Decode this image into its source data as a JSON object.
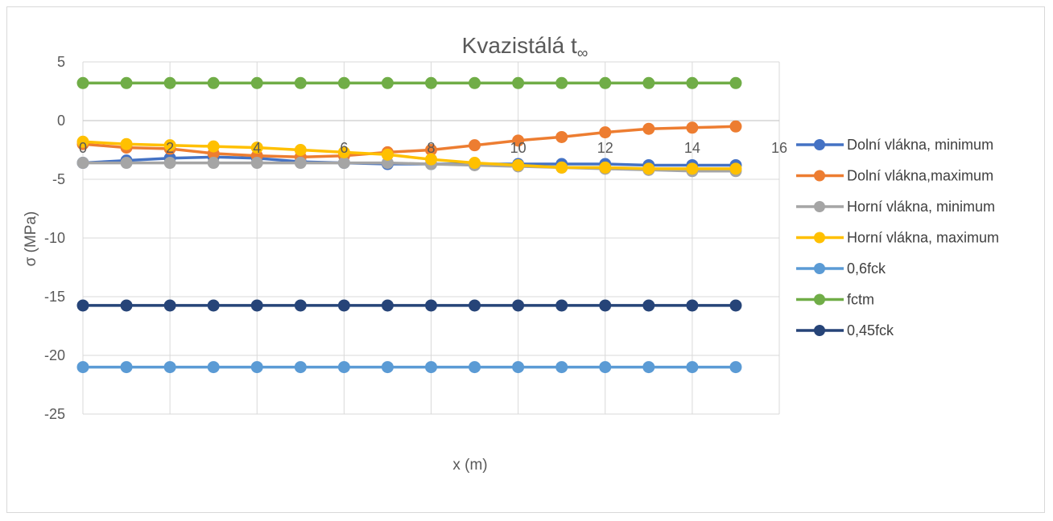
{
  "chart_data": {
    "type": "line",
    "title": "Kvazistálá t",
    "title_subscript": "∞",
    "xlabel": "x (m)",
    "ylabel": "σ (MPa)",
    "xlim": [
      0,
      16
    ],
    "ylim": [
      -25,
      5
    ],
    "x_ticks": [
      "0",
      "2",
      "4",
      "6",
      "8",
      "10",
      "12",
      "14",
      "16"
    ],
    "y_ticks": [
      "5",
      "0",
      "-5",
      "-10",
      "-15",
      "-20",
      "-25"
    ],
    "grid": true,
    "legend_position": "right",
    "x": [
      0,
      1,
      2,
      3,
      4,
      5,
      6,
      7,
      8,
      9,
      10,
      11,
      12,
      13,
      14,
      15
    ],
    "series": [
      {
        "name": "Dolní vlákna, minimum",
        "color": "#4472c4",
        "values": [
          -3.6,
          -3.4,
          -3.2,
          -3.1,
          -3.2,
          -3.5,
          -3.6,
          -3.7,
          -3.7,
          -3.7,
          -3.7,
          -3.7,
          -3.7,
          -3.8,
          -3.8,
          -3.8
        ]
      },
      {
        "name": "Dolní vlákna,maximum",
        "color": "#ed7d31",
        "values": [
          -2.0,
          -2.3,
          -2.4,
          -2.8,
          -3.0,
          -3.1,
          -3.0,
          -2.7,
          -2.5,
          -2.1,
          -1.7,
          -1.4,
          -1.0,
          -0.7,
          -0.6,
          -0.5
        ]
      },
      {
        "name": "Horní vlákna, minimum",
        "color": "#a5a5a5",
        "values": [
          -3.6,
          -3.6,
          -3.6,
          -3.6,
          -3.6,
          -3.6,
          -3.6,
          -3.6,
          -3.7,
          -3.8,
          -3.9,
          -4.0,
          -4.1,
          -4.2,
          -4.3,
          -4.3
        ]
      },
      {
        "name": "Horní vlákna, maximum",
        "color": "#ffc000",
        "values": [
          -1.8,
          -2.0,
          -2.1,
          -2.2,
          -2.3,
          -2.5,
          -2.7,
          -2.9,
          -3.3,
          -3.6,
          -3.8,
          -4.0,
          -4.0,
          -4.1,
          -4.1,
          -4.1
        ]
      },
      {
        "name": "0,6fck",
        "color": "#5b9bd5",
        "values": [
          -21,
          -21,
          -21,
          -21,
          -21,
          -21,
          -21,
          -21,
          -21,
          -21,
          -21,
          -21,
          -21,
          -21,
          -21,
          -21
        ]
      },
      {
        "name": "fctm",
        "color": "#70ad47",
        "values": [
          3.2,
          3.2,
          3.2,
          3.2,
          3.2,
          3.2,
          3.2,
          3.2,
          3.2,
          3.2,
          3.2,
          3.2,
          3.2,
          3.2,
          3.2,
          3.2
        ]
      },
      {
        "name": "0,45fck",
        "color": "#264478",
        "values": [
          -15.75,
          -15.75,
          -15.75,
          -15.75,
          -15.75,
          -15.75,
          -15.75,
          -15.75,
          -15.75,
          -15.75,
          -15.75,
          -15.75,
          -15.75,
          -15.75,
          -15.75,
          -15.75
        ]
      }
    ]
  },
  "colors": {
    "grid": "#d9d9d9",
    "axis": "#bfbfbf",
    "text": "#595959"
  }
}
